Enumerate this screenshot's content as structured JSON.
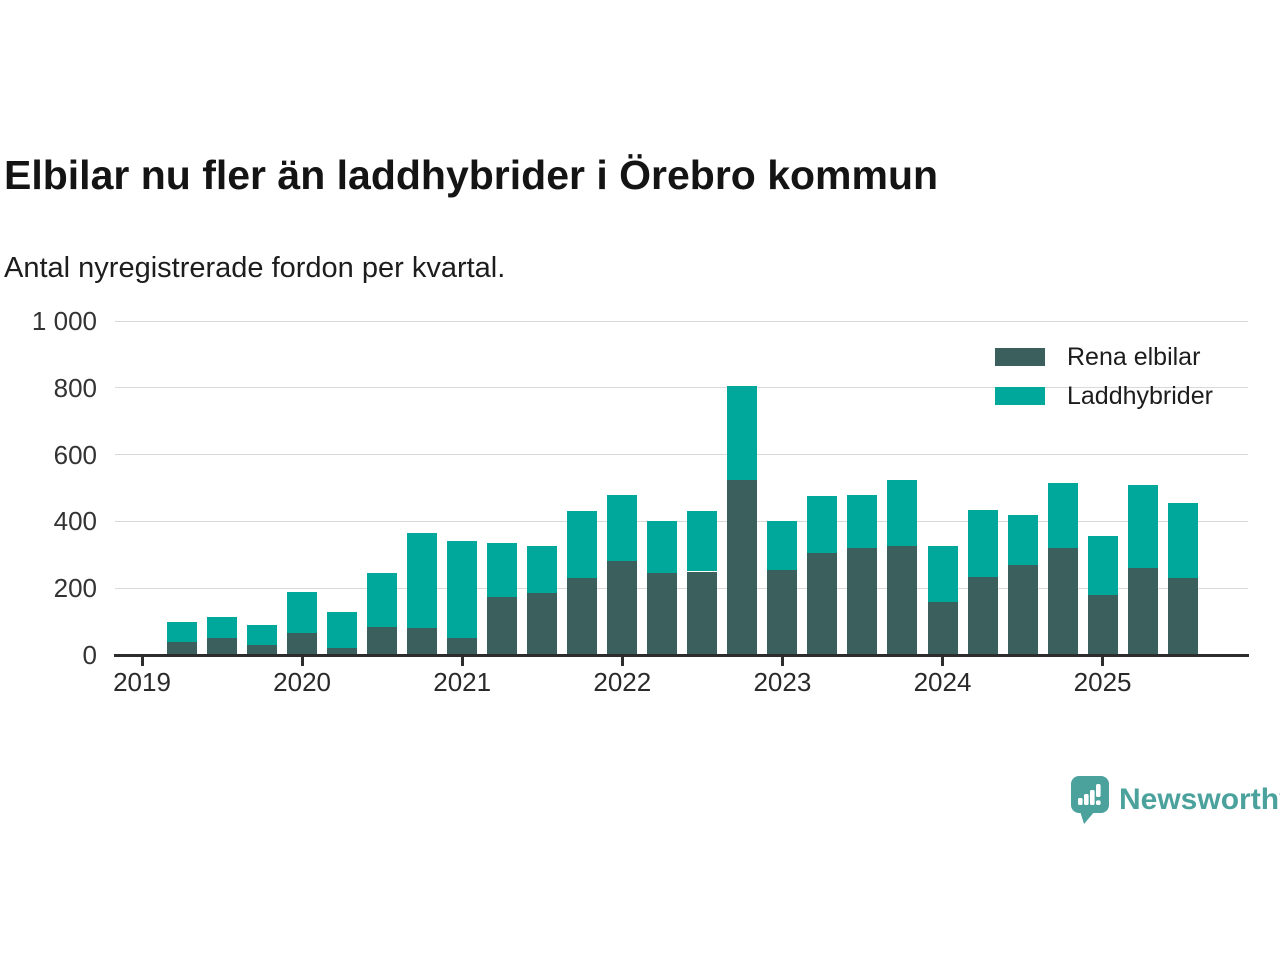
{
  "chart_data": {
    "type": "bar",
    "stacked": true,
    "title": "Elbilar nu fler än laddhybrider i Örebro kommun",
    "subtitle": "Antal nyregistrerade fordon per kvartal.",
    "x": [
      "2019 Q2",
      "2019 Q3",
      "2019 Q4",
      "2020 Q1",
      "2020 Q2",
      "2020 Q3",
      "2020 Q4",
      "2021 Q1",
      "2021 Q2",
      "2021 Q3",
      "2021 Q4",
      "2022 Q1",
      "2022 Q2",
      "2022 Q3",
      "2022 Q4",
      "2023 Q1",
      "2023 Q2",
      "2023 Q3",
      "2023 Q4",
      "2024 Q1",
      "2024 Q2",
      "2024 Q3",
      "2024 Q4",
      "2025 Q1",
      "2025 Q2",
      "2025 Q3"
    ],
    "series": [
      {
        "name": "Rena elbilar",
        "color": "#3B5F5C",
        "values": [
          40,
          50,
          30,
          65,
          20,
          85,
          80,
          50,
          175,
          185,
          230,
          280,
          245,
          250,
          525,
          255,
          305,
          320,
          325,
          160,
          235,
          270,
          320,
          180,
          260,
          230
        ]
      },
      {
        "name": "Laddhybrider",
        "color": "#00A79B",
        "values": [
          60,
          65,
          60,
          125,
          110,
          160,
          285,
          290,
          160,
          140,
          200,
          200,
          155,
          180,
          280,
          145,
          170,
          160,
          200,
          165,
          200,
          150,
          195,
          175,
          250,
          225
        ]
      }
    ],
    "ylim": [
      0,
      1000
    ],
    "yticks": [
      {
        "value": 0,
        "label": "0"
      },
      {
        "value": 200,
        "label": "200"
      },
      {
        "value": 400,
        "label": "400"
      },
      {
        "value": 600,
        "label": "600"
      },
      {
        "value": 800,
        "label": "800"
      },
      {
        "value": 1000,
        "label": "1 000"
      }
    ],
    "xticks": [
      {
        "year": 2019,
        "label": "2019"
      },
      {
        "year": 2020,
        "label": "2020"
      },
      {
        "year": 2021,
        "label": "2021"
      },
      {
        "year": 2022,
        "label": "2022"
      },
      {
        "year": 2023,
        "label": "2023"
      },
      {
        "year": 2024,
        "label": "2024"
      },
      {
        "year": 2025,
        "label": "2025"
      }
    ],
    "grid": true,
    "legend_position": "top-right"
  },
  "footer": {
    "brand": "Newsworthy",
    "brand_color": "#4BA29D"
  }
}
